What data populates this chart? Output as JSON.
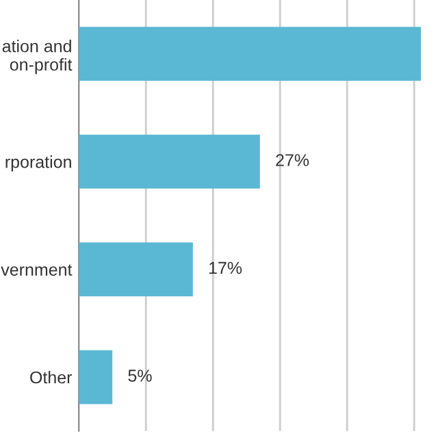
{
  "chart_data": {
    "type": "bar",
    "orientation": "horizontal",
    "categories": [
      "ation and\non-profit",
      "rporation",
      "vernment",
      "Other"
    ],
    "values": [
      51,
      27,
      17,
      5
    ],
    "value_labels": [
      null,
      "27%",
      "17%",
      "5%"
    ],
    "color": "#5bb8d4",
    "xticks": [
      {
        "value": 10,
        "label": null
      },
      {
        "value": 20,
        "label": null
      },
      {
        "value": 30,
        "label": null
      },
      {
        "value": 40,
        "label": null
      },
      {
        "value": 50,
        "label": null
      }
    ],
    "tick_labels": "y",
    "grid": "x",
    "legend": false
  }
}
